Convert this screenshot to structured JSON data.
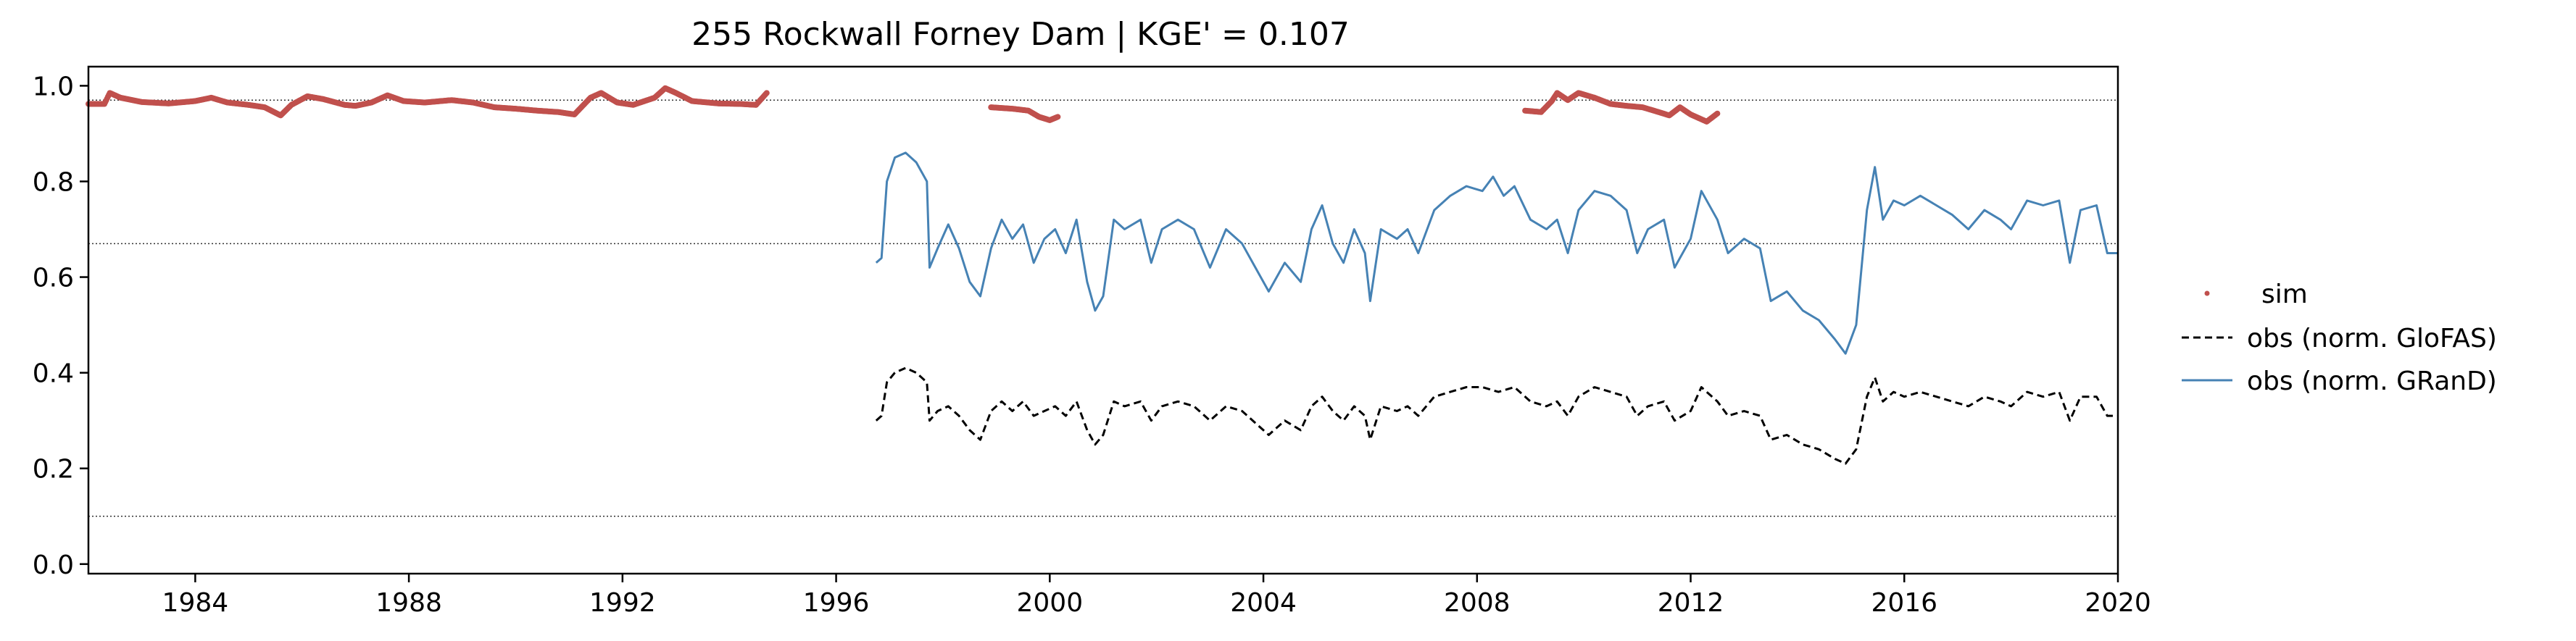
{
  "chart_data": {
    "type": "line",
    "title": "255  Rockwall Forney Dam | KGE' = 0.107",
    "xlabel": "",
    "ylabel": "",
    "xlim": [
      1982.0,
      2020.0
    ],
    "ylim": [
      -0.02,
      1.04
    ],
    "xticks": [
      1984,
      1988,
      1992,
      1996,
      2000,
      2004,
      2008,
      2012,
      2016,
      2020
    ],
    "yticks": [
      0.0,
      0.2,
      0.4,
      0.6,
      0.8,
      1.0
    ],
    "xtick_labels": [
      "1984",
      "1988",
      "1992",
      "1996",
      "2000",
      "2004",
      "2008",
      "2012",
      "2016",
      "2020"
    ],
    "ytick_labels": [
      "0.0",
      "0.2",
      "0.4",
      "0.6",
      "0.8",
      "1.0"
    ],
    "hlines": [
      0.97,
      0.67,
      0.1
    ],
    "legend_position": "right",
    "legend": [
      "sim",
      "obs (norm. GloFAS)",
      "obs (norm. GRanD)"
    ],
    "series": [
      {
        "name": "sim",
        "style": "points",
        "color": "#c0504d",
        "segments": [
          [
            [
              1982.0,
              0.962
            ],
            [
              1982.3,
              0.962
            ],
            [
              1982.4,
              0.985
            ],
            [
              1982.6,
              0.975
            ],
            [
              1983.0,
              0.966
            ],
            [
              1983.5,
              0.963
            ],
            [
              1984.0,
              0.968
            ],
            [
              1984.3,
              0.975
            ],
            [
              1984.6,
              0.965
            ],
            [
              1985.0,
              0.96
            ],
            [
              1985.3,
              0.955
            ],
            [
              1985.6,
              0.938
            ],
            [
              1985.8,
              0.96
            ],
            [
              1986.1,
              0.978
            ],
            [
              1986.4,
              0.972
            ],
            [
              1986.8,
              0.96
            ],
            [
              1987.0,
              0.958
            ],
            [
              1987.3,
              0.965
            ],
            [
              1987.6,
              0.98
            ],
            [
              1987.9,
              0.968
            ],
            [
              1988.3,
              0.965
            ],
            [
              1988.8,
              0.97
            ],
            [
              1989.2,
              0.965
            ],
            [
              1989.6,
              0.955
            ],
            [
              1990.0,
              0.952
            ],
            [
              1990.4,
              0.948
            ],
            [
              1990.8,
              0.945
            ],
            [
              1991.1,
              0.94
            ],
            [
              1991.4,
              0.975
            ],
            [
              1991.6,
              0.985
            ],
            [
              1991.9,
              0.965
            ],
            [
              1992.2,
              0.96
            ],
            [
              1992.6,
              0.975
            ],
            [
              1992.8,
              0.995
            ],
            [
              1993.0,
              0.985
            ],
            [
              1993.3,
              0.968
            ],
            [
              1993.8,
              0.963
            ],
            [
              1994.2,
              0.962
            ],
            [
              1994.5,
              0.96
            ],
            [
              1994.7,
              0.985
            ]
          ],
          [
            [
              1998.9,
              0.955
            ],
            [
              1999.3,
              0.952
            ],
            [
              1999.6,
              0.948
            ],
            [
              1999.8,
              0.935
            ],
            [
              2000.0,
              0.928
            ],
            [
              2000.15,
              0.935
            ]
          ],
          [
            [
              2008.9,
              0.948
            ],
            [
              2009.2,
              0.945
            ],
            [
              2009.4,
              0.968
            ],
            [
              2009.5,
              0.985
            ],
            [
              2009.7,
              0.97
            ],
            [
              2009.9,
              0.985
            ],
            [
              2010.2,
              0.975
            ],
            [
              2010.5,
              0.962
            ],
            [
              2010.8,
              0.958
            ],
            [
              2011.1,
              0.955
            ],
            [
              2011.4,
              0.945
            ],
            [
              2011.6,
              0.938
            ],
            [
              2011.8,
              0.955
            ],
            [
              2012.0,
              0.94
            ],
            [
              2012.3,
              0.925
            ],
            [
              2012.5,
              0.942
            ]
          ]
        ]
      },
      {
        "name": "obs (norm. GloFAS)",
        "style": "dashed",
        "color": "#000000",
        "points": [
          [
            1996.75,
            0.3
          ],
          [
            1996.85,
            0.31
          ],
          [
            1996.95,
            0.38
          ],
          [
            1997.1,
            0.4
          ],
          [
            1997.3,
            0.41
          ],
          [
            1997.5,
            0.4
          ],
          [
            1997.7,
            0.38
          ],
          [
            1997.75,
            0.3
          ],
          [
            1997.9,
            0.32
          ],
          [
            1998.1,
            0.33
          ],
          [
            1998.3,
            0.31
          ],
          [
            1998.5,
            0.28
          ],
          [
            1998.7,
            0.26
          ],
          [
            1998.9,
            0.32
          ],
          [
            1999.1,
            0.34
          ],
          [
            1999.3,
            0.32
          ],
          [
            1999.5,
            0.34
          ],
          [
            1999.7,
            0.31
          ],
          [
            1999.9,
            0.32
          ],
          [
            2000.1,
            0.33
          ],
          [
            2000.3,
            0.31
          ],
          [
            2000.5,
            0.34
          ],
          [
            2000.7,
            0.28
          ],
          [
            2000.85,
            0.25
          ],
          [
            2001.0,
            0.27
          ],
          [
            2001.2,
            0.34
          ],
          [
            2001.4,
            0.33
          ],
          [
            2001.7,
            0.34
          ],
          [
            2001.9,
            0.3
          ],
          [
            2002.1,
            0.33
          ],
          [
            2002.4,
            0.34
          ],
          [
            2002.7,
            0.33
          ],
          [
            2003.0,
            0.3
          ],
          [
            2003.3,
            0.33
          ],
          [
            2003.6,
            0.32
          ],
          [
            2003.9,
            0.29
          ],
          [
            2004.1,
            0.27
          ],
          [
            2004.4,
            0.3
          ],
          [
            2004.7,
            0.28
          ],
          [
            2004.9,
            0.33
          ],
          [
            2005.1,
            0.35
          ],
          [
            2005.3,
            0.32
          ],
          [
            2005.5,
            0.3
          ],
          [
            2005.7,
            0.33
          ],
          [
            2005.9,
            0.31
          ],
          [
            2006.0,
            0.26
          ],
          [
            2006.2,
            0.33
          ],
          [
            2006.5,
            0.32
          ],
          [
            2006.7,
            0.33
          ],
          [
            2006.9,
            0.31
          ],
          [
            2007.2,
            0.35
          ],
          [
            2007.5,
            0.36
          ],
          [
            2007.8,
            0.37
          ],
          [
            2008.1,
            0.37
          ],
          [
            2008.4,
            0.36
          ],
          [
            2008.7,
            0.37
          ],
          [
            2009.0,
            0.34
          ],
          [
            2009.3,
            0.33
          ],
          [
            2009.5,
            0.34
          ],
          [
            2009.7,
            0.31
          ],
          [
            2009.9,
            0.35
          ],
          [
            2010.2,
            0.37
          ],
          [
            2010.5,
            0.36
          ],
          [
            2010.8,
            0.35
          ],
          [
            2011.0,
            0.31
          ],
          [
            2011.2,
            0.33
          ],
          [
            2011.5,
            0.34
          ],
          [
            2011.7,
            0.3
          ],
          [
            2012.0,
            0.32
          ],
          [
            2012.2,
            0.37
          ],
          [
            2012.5,
            0.34
          ],
          [
            2012.7,
            0.31
          ],
          [
            2013.0,
            0.32
          ],
          [
            2013.3,
            0.31
          ],
          [
            2013.5,
            0.26
          ],
          [
            2013.8,
            0.27
          ],
          [
            2014.1,
            0.25
          ],
          [
            2014.4,
            0.24
          ],
          [
            2014.7,
            0.22
          ],
          [
            2014.9,
            0.21
          ],
          [
            2015.1,
            0.24
          ],
          [
            2015.3,
            0.35
          ],
          [
            2015.45,
            0.39
          ],
          [
            2015.6,
            0.34
          ],
          [
            2015.8,
            0.36
          ],
          [
            2016.0,
            0.35
          ],
          [
            2016.3,
            0.36
          ],
          [
            2016.6,
            0.35
          ],
          [
            2016.9,
            0.34
          ],
          [
            2017.2,
            0.33
          ],
          [
            2017.5,
            0.35
          ],
          [
            2017.8,
            0.34
          ],
          [
            2018.0,
            0.33
          ],
          [
            2018.3,
            0.36
          ],
          [
            2018.6,
            0.35
          ],
          [
            2018.9,
            0.36
          ],
          [
            2019.1,
            0.3
          ],
          [
            2019.3,
            0.35
          ],
          [
            2019.6,
            0.35
          ],
          [
            2019.8,
            0.31
          ],
          [
            2020.0,
            0.31
          ]
        ]
      },
      {
        "name": "obs (norm. GRanD)",
        "style": "solid",
        "color": "#4682b4",
        "points": [
          [
            1996.75,
            0.63
          ],
          [
            1996.85,
            0.64
          ],
          [
            1996.95,
            0.8
          ],
          [
            1997.1,
            0.85
          ],
          [
            1997.3,
            0.86
          ],
          [
            1997.5,
            0.84
          ],
          [
            1997.7,
            0.8
          ],
          [
            1997.75,
            0.62
          ],
          [
            1997.9,
            0.66
          ],
          [
            1998.1,
            0.71
          ],
          [
            1998.3,
            0.66
          ],
          [
            1998.5,
            0.59
          ],
          [
            1998.7,
            0.56
          ],
          [
            1998.9,
            0.66
          ],
          [
            1999.1,
            0.72
          ],
          [
            1999.3,
            0.68
          ],
          [
            1999.5,
            0.71
          ],
          [
            1999.7,
            0.63
          ],
          [
            1999.9,
            0.68
          ],
          [
            2000.1,
            0.7
          ],
          [
            2000.3,
            0.65
          ],
          [
            2000.5,
            0.72
          ],
          [
            2000.7,
            0.59
          ],
          [
            2000.85,
            0.53
          ],
          [
            2001.0,
            0.56
          ],
          [
            2001.2,
            0.72
          ],
          [
            2001.4,
            0.7
          ],
          [
            2001.7,
            0.72
          ],
          [
            2001.9,
            0.63
          ],
          [
            2002.1,
            0.7
          ],
          [
            2002.4,
            0.72
          ],
          [
            2002.7,
            0.7
          ],
          [
            2003.0,
            0.62
          ],
          [
            2003.3,
            0.7
          ],
          [
            2003.6,
            0.67
          ],
          [
            2003.9,
            0.61
          ],
          [
            2004.1,
            0.57
          ],
          [
            2004.4,
            0.63
          ],
          [
            2004.7,
            0.59
          ],
          [
            2004.9,
            0.7
          ],
          [
            2005.1,
            0.75
          ],
          [
            2005.3,
            0.67
          ],
          [
            2005.5,
            0.63
          ],
          [
            2005.7,
            0.7
          ],
          [
            2005.9,
            0.65
          ],
          [
            2006.0,
            0.55
          ],
          [
            2006.2,
            0.7
          ],
          [
            2006.5,
            0.68
          ],
          [
            2006.7,
            0.7
          ],
          [
            2006.9,
            0.65
          ],
          [
            2007.2,
            0.74
          ],
          [
            2007.5,
            0.77
          ],
          [
            2007.8,
            0.79
          ],
          [
            2008.1,
            0.78
          ],
          [
            2008.3,
            0.81
          ],
          [
            2008.5,
            0.77
          ],
          [
            2008.7,
            0.79
          ],
          [
            2009.0,
            0.72
          ],
          [
            2009.3,
            0.7
          ],
          [
            2009.5,
            0.72
          ],
          [
            2009.7,
            0.65
          ],
          [
            2009.9,
            0.74
          ],
          [
            2010.2,
            0.78
          ],
          [
            2010.5,
            0.77
          ],
          [
            2010.8,
            0.74
          ],
          [
            2011.0,
            0.65
          ],
          [
            2011.2,
            0.7
          ],
          [
            2011.5,
            0.72
          ],
          [
            2011.7,
            0.62
          ],
          [
            2012.0,
            0.68
          ],
          [
            2012.2,
            0.78
          ],
          [
            2012.5,
            0.72
          ],
          [
            2012.7,
            0.65
          ],
          [
            2013.0,
            0.68
          ],
          [
            2013.3,
            0.66
          ],
          [
            2013.5,
            0.55
          ],
          [
            2013.8,
            0.57
          ],
          [
            2014.1,
            0.53
          ],
          [
            2014.4,
            0.51
          ],
          [
            2014.7,
            0.47
          ],
          [
            2014.9,
            0.44
          ],
          [
            2015.1,
            0.5
          ],
          [
            2015.3,
            0.74
          ],
          [
            2015.45,
            0.83
          ],
          [
            2015.6,
            0.72
          ],
          [
            2015.8,
            0.76
          ],
          [
            2016.0,
            0.75
          ],
          [
            2016.3,
            0.77
          ],
          [
            2016.6,
            0.75
          ],
          [
            2016.9,
            0.73
          ],
          [
            2017.2,
            0.7
          ],
          [
            2017.5,
            0.74
          ],
          [
            2017.8,
            0.72
          ],
          [
            2018.0,
            0.7
          ],
          [
            2018.3,
            0.76
          ],
          [
            2018.6,
            0.75
          ],
          [
            2018.9,
            0.76
          ],
          [
            2019.1,
            0.63
          ],
          [
            2019.3,
            0.74
          ],
          [
            2019.6,
            0.75
          ],
          [
            2019.8,
            0.65
          ],
          [
            2020.0,
            0.65
          ]
        ]
      }
    ]
  }
}
